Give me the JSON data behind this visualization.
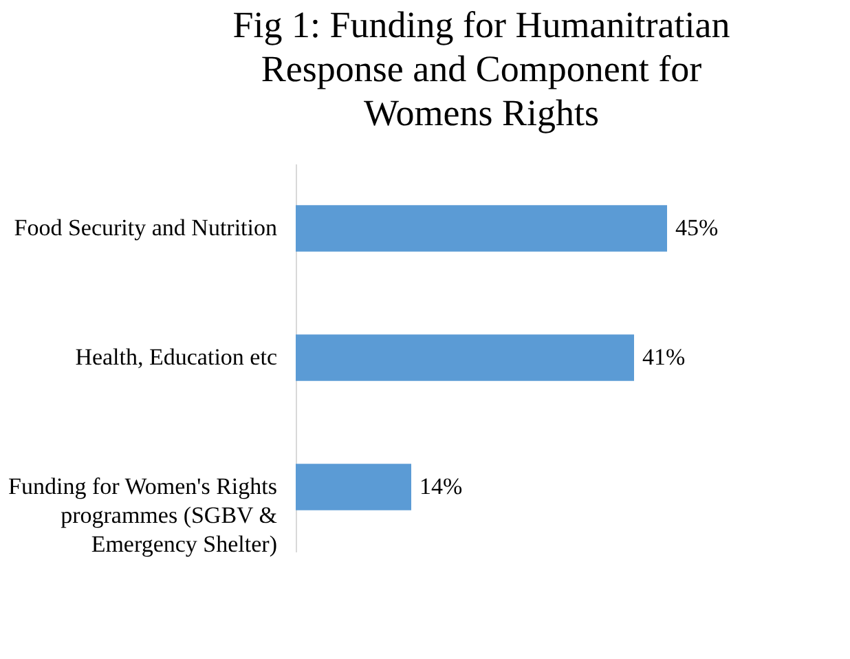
{
  "chart_data": {
    "type": "bar",
    "orientation": "horizontal",
    "title": "Fig 1: Funding for Humanitratian Response and Component for Womens Rights",
    "categories": [
      "Food Security and Nutrition",
      "Health, Education etc",
      "Funding for Women's Rights programmes (SGBV & Emergency Shelter)"
    ],
    "values": [
      45,
      41,
      14
    ],
    "value_labels": [
      "45%",
      "41%",
      "14%"
    ],
    "color": "#5b9bd5",
    "grid": false
  }
}
